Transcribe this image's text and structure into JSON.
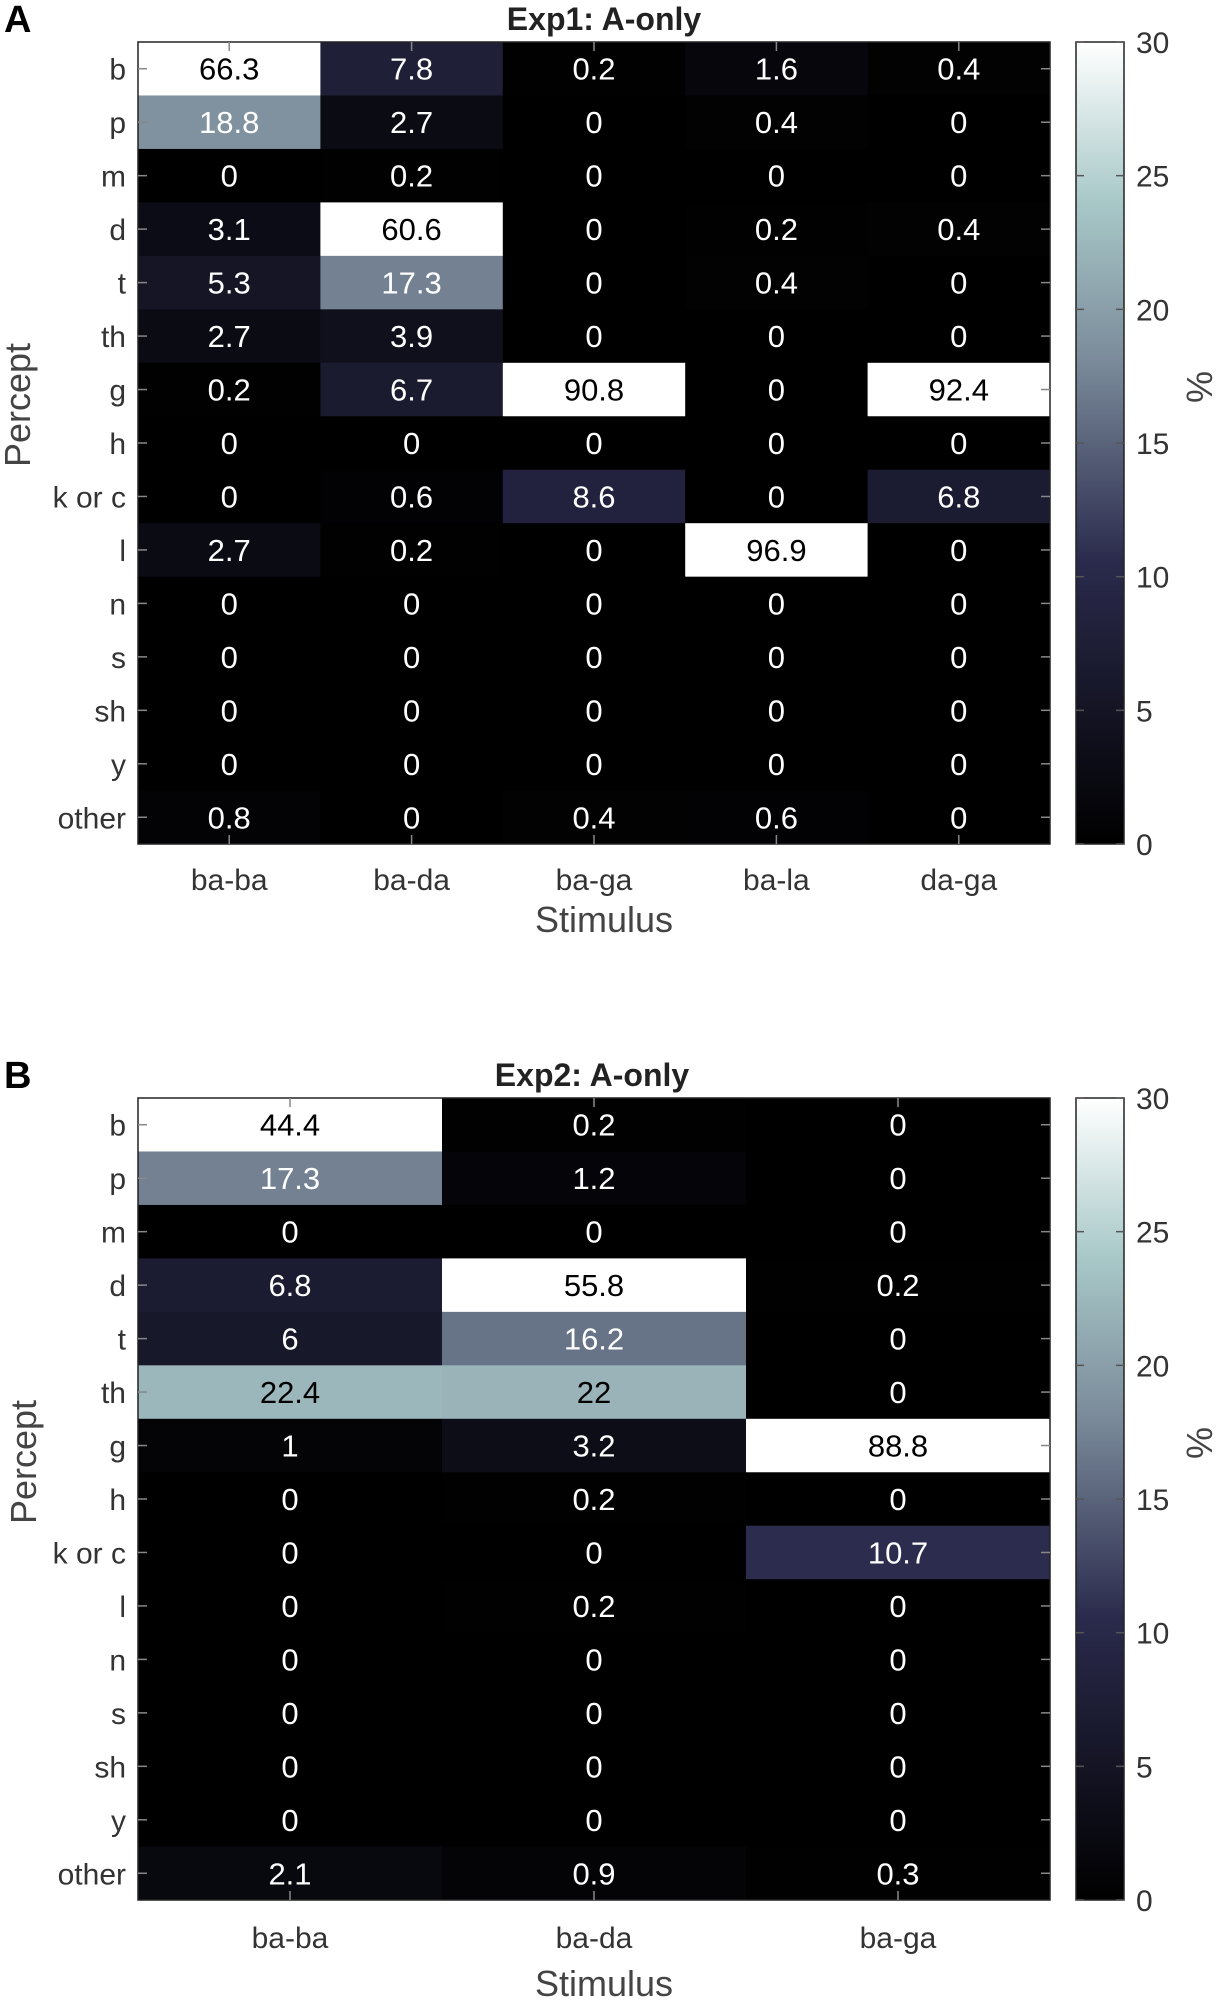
{
  "colormap": {
    "stops": [
      {
        "t": 0.0,
        "color": "#000000"
      },
      {
        "t": 0.35,
        "color": "#2a2a4c"
      },
      {
        "t": 0.6,
        "color": "#7a8a9a"
      },
      {
        "t": 0.8,
        "color": "#a8c8c8"
      },
      {
        "t": 1.0,
        "color": "#ffffff"
      }
    ],
    "min": 0,
    "max": 30
  },
  "chart_data": [
    {
      "type": "heatmap",
      "panel_label": "A",
      "title": "Exp1: A-only",
      "xlabel": "Stimulus",
      "ylabel": "Percept",
      "colorbar_label": "%",
      "colorbar_ticks": [
        0,
        5,
        10,
        15,
        20,
        25,
        30
      ],
      "clim": [
        0,
        30
      ],
      "x_categories": [
        "ba-ba",
        "ba-da",
        "ba-ga",
        "ba-la",
        "da-ga"
      ],
      "y_categories": [
        "b",
        "p",
        "m",
        "d",
        "t",
        "th",
        "g",
        "h",
        "k or c",
        "l",
        "n",
        "s",
        "sh",
        "y",
        "other"
      ],
      "values": [
        [
          "66.3",
          "7.8",
          "0.2",
          "1.6",
          "0.4"
        ],
        [
          "18.8",
          "2.7",
          "0",
          "0.4",
          "0"
        ],
        [
          "0",
          "0.2",
          "0",
          "0",
          "0"
        ],
        [
          "3.1",
          "60.6",
          "0",
          "0.2",
          "0.4"
        ],
        [
          "5.3",
          "17.3",
          "0",
          "0.4",
          "0"
        ],
        [
          "2.7",
          "3.9",
          "0",
          "0",
          "0"
        ],
        [
          "0.2",
          "6.7",
          "90.8",
          "0",
          "92.4"
        ],
        [
          "0",
          "0",
          "0",
          "0",
          "0"
        ],
        [
          "0",
          "0.6",
          "8.6",
          "0",
          "6.8"
        ],
        [
          "2.7",
          "0.2",
          "0",
          "96.9",
          "0"
        ],
        [
          "0",
          "0",
          "0",
          "0",
          "0"
        ],
        [
          "0",
          "0",
          "0",
          "0",
          "0"
        ],
        [
          "0",
          "0",
          "0",
          "0",
          "0"
        ],
        [
          "0",
          "0",
          "0",
          "0",
          "0"
        ],
        [
          "0.8",
          "0",
          "0.4",
          "0.6",
          "0"
        ]
      ]
    },
    {
      "type": "heatmap",
      "panel_label": "B",
      "title": "Exp2: A-only",
      "xlabel": "Stimulus",
      "ylabel": "Percept",
      "colorbar_label": "%",
      "colorbar_ticks": [
        0,
        5,
        10,
        15,
        20,
        25,
        30
      ],
      "clim": [
        0,
        30
      ],
      "x_categories": [
        "ba-ba",
        "ba-da",
        "ba-ga"
      ],
      "y_categories": [
        "b",
        "p",
        "m",
        "d",
        "t",
        "th",
        "g",
        "h",
        "k or c",
        "l",
        "n",
        "s",
        "sh",
        "y",
        "other"
      ],
      "values": [
        [
          "44.4",
          "0.2",
          "0"
        ],
        [
          "17.3",
          "1.2",
          "0"
        ],
        [
          "0",
          "0",
          "0"
        ],
        [
          "6.8",
          "55.8",
          "0.2"
        ],
        [
          "6",
          "16.2",
          "0"
        ],
        [
          "22.4",
          "22",
          "0"
        ],
        [
          "1",
          "3.2",
          "88.8"
        ],
        [
          "0",
          "0.2",
          "0"
        ],
        [
          "0",
          "0",
          "10.7"
        ],
        [
          "0",
          "0.2",
          "0"
        ],
        [
          "0",
          "0",
          "0"
        ],
        [
          "0",
          "0",
          "0"
        ],
        [
          "0",
          "0",
          "0"
        ],
        [
          "0",
          "0",
          "0"
        ],
        [
          "2.1",
          "0.9",
          "0.3"
        ]
      ]
    }
  ]
}
